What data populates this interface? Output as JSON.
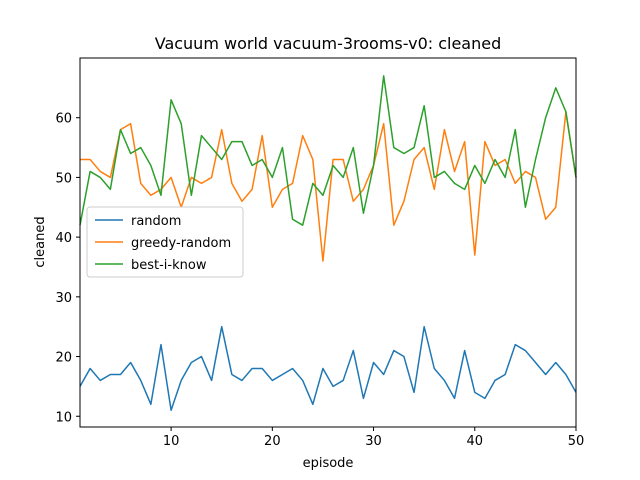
{
  "chart_data": {
    "type": "line",
    "title": "Vacuum world vacuum-3rooms-v0: cleaned",
    "xlabel": "episode",
    "ylabel": "cleaned",
    "xlim": [
      1,
      50
    ],
    "ylim": [
      8.2,
      70
    ],
    "xticks": [
      10,
      20,
      30,
      40,
      50
    ],
    "yticks": [
      10,
      20,
      30,
      40,
      50,
      60
    ],
    "grid": false,
    "legend_position": "center-left",
    "x": [
      1,
      2,
      3,
      4,
      5,
      6,
      7,
      8,
      9,
      10,
      11,
      12,
      13,
      14,
      15,
      16,
      17,
      18,
      19,
      20,
      21,
      22,
      23,
      24,
      25,
      26,
      27,
      28,
      29,
      30,
      31,
      32,
      33,
      34,
      35,
      36,
      37,
      38,
      39,
      40,
      41,
      42,
      43,
      44,
      45,
      46,
      47,
      48,
      49,
      50
    ],
    "series": [
      {
        "name": "random",
        "color": "#1f77b4",
        "values": [
          15,
          18,
          16,
          17,
          17,
          19,
          16,
          12,
          22,
          11,
          16,
          19,
          20,
          16,
          25,
          17,
          16,
          18,
          18,
          16,
          17,
          18,
          16,
          12,
          18,
          15,
          16,
          21,
          13,
          19,
          17,
          21,
          20,
          14,
          25,
          18,
          16,
          13,
          21,
          14,
          13,
          16,
          17,
          22,
          21,
          19,
          17,
          19,
          17,
          14
        ]
      },
      {
        "name": "greedy-random",
        "color": "#ff7f0e",
        "values": [
          53,
          53,
          51,
          50,
          58,
          59,
          49,
          47,
          48,
          50,
          45,
          50,
          49,
          50,
          58,
          49,
          46,
          48,
          57,
          45,
          48,
          49,
          57,
          53,
          36,
          53,
          53,
          46,
          48,
          52,
          59,
          42,
          46,
          53,
          55,
          48,
          58,
          51,
          56,
          37,
          56,
          52,
          53,
          49,
          51,
          50,
          43,
          45,
          61,
          50
        ]
      },
      {
        "name": "best-i-know",
        "color": "#2ca02c",
        "values": [
          42,
          51,
          50,
          48,
          58,
          54,
          55,
          52,
          47,
          63,
          59,
          47,
          57,
          55,
          53,
          56,
          56,
          52,
          53,
          50,
          55,
          43,
          42,
          49,
          47,
          52,
          50,
          55,
          44,
          52,
          67,
          55,
          54,
          55,
          62,
          50,
          51,
          49,
          48,
          52,
          49,
          53,
          50,
          58,
          45,
          53,
          60,
          65,
          61,
          50
        ]
      }
    ]
  }
}
